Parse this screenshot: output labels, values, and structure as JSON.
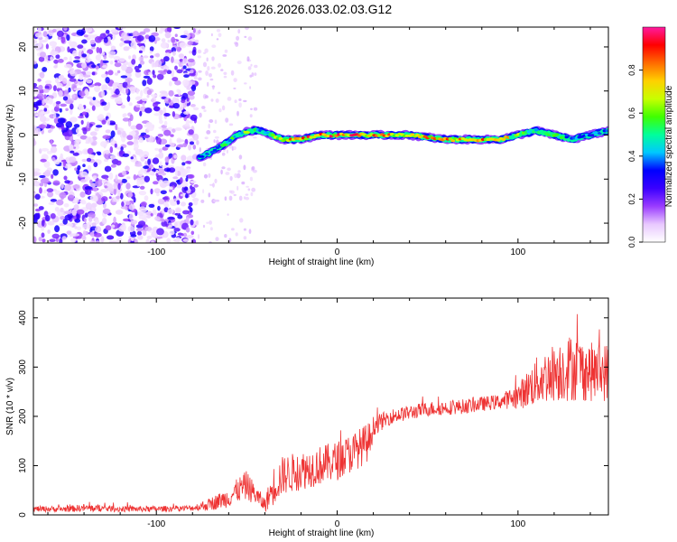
{
  "figure": {
    "title": "S126.2026.033.02.03.G12"
  },
  "colorbar": {
    "label": "Normalized spectral amplitude",
    "ticks": [
      "0.0",
      "0.2",
      "0.4",
      "0.6",
      "0.8"
    ],
    "colors": [
      "#ffffff",
      "#e8c8ff",
      "#9a3cff",
      "#3a00ff",
      "#0000ff",
      "#00c8ff",
      "#00ff9a",
      "#40ff00",
      "#c8ff00",
      "#ffd000",
      "#ff6a00",
      "#ff0000",
      "#ff1aa0"
    ]
  },
  "chart_data": [
    {
      "type": "heatmap",
      "title": "",
      "xlabel": "Height of straight line (km)",
      "ylabel": "Frequency (Hz)",
      "xlim": [
        -168,
        150
      ],
      "ylim": [
        -24.5,
        24.5
      ],
      "xticks": [
        -100,
        0,
        100
      ],
      "xtick_labels": [
        "-100",
        "0",
        "100"
      ],
      "yticks": [
        -20,
        -10,
        0,
        10,
        20
      ],
      "ytick_labels": [
        "-20",
        "-10",
        "0",
        "10",
        "20"
      ],
      "noise_region_x": [
        -168,
        -78
      ],
      "sparse_region_x": [
        -78,
        -45
      ],
      "ridge": {
        "x": [
          -76,
          -70,
          -62,
          -55,
          -48,
          -42,
          -36,
          -30,
          -20,
          -10,
          0,
          20,
          40,
          60,
          80,
          90,
          100,
          110,
          120,
          130,
          140,
          150
        ],
        "frequency": [
          -5,
          -4,
          -2,
          0,
          1,
          1,
          0,
          -1,
          -1,
          0,
          0,
          0,
          0,
          -1,
          -1,
          -1,
          0,
          1,
          0,
          -1,
          0,
          1
        ],
        "peak_amplitude": [
          0.4,
          0.5,
          0.55,
          0.6,
          0.6,
          0.55,
          0.65,
          0.8,
          0.85,
          0.9,
          0.9,
          0.85,
          0.8,
          0.85,
          0.85,
          0.8,
          0.7,
          0.6,
          0.55,
          0.5,
          0.45,
          0.5
        ]
      },
      "grid": false
    },
    {
      "type": "line",
      "title": "",
      "xlabel": "Height of straight line (km)",
      "ylabel": "SNR (10 * v/v)",
      "xlim": [
        -168,
        150
      ],
      "ylim": [
        0,
        440
      ],
      "xticks": [
        -100,
        0,
        100
      ],
      "xtick_labels": [
        "-100",
        "0",
        "100"
      ],
      "yticks": [
        0,
        100,
        200,
        300,
        400
      ],
      "ytick_labels": [
        "0",
        "100",
        "200",
        "300",
        "400"
      ],
      "series": [
        {
          "color": "#ee3333",
          "x": [
            -168,
            -150,
            -140,
            -120,
            -100,
            -80,
            -72,
            -60,
            -55,
            -50,
            -45,
            -40,
            -35,
            -30,
            -25,
            -20,
            -10,
            0,
            10,
            18,
            20,
            30,
            50,
            70,
            90,
            100,
            110,
            120,
            130,
            140,
            150
          ],
          "baseline": [
            12,
            12,
            14,
            12,
            12,
            14,
            20,
            35,
            50,
            60,
            40,
            20,
            60,
            80,
            85,
            90,
            100,
            110,
            130,
            150,
            180,
            200,
            215,
            220,
            230,
            240,
            270,
            290,
            300,
            290,
            290
          ],
          "spread": [
            6,
            6,
            8,
            6,
            6,
            6,
            12,
            20,
            25,
            30,
            20,
            15,
            40,
            40,
            40,
            40,
            40,
            40,
            40,
            40,
            20,
            15,
            15,
            15,
            15,
            25,
            50,
            60,
            70,
            60,
            60
          ]
        }
      ],
      "grid": false
    }
  ]
}
